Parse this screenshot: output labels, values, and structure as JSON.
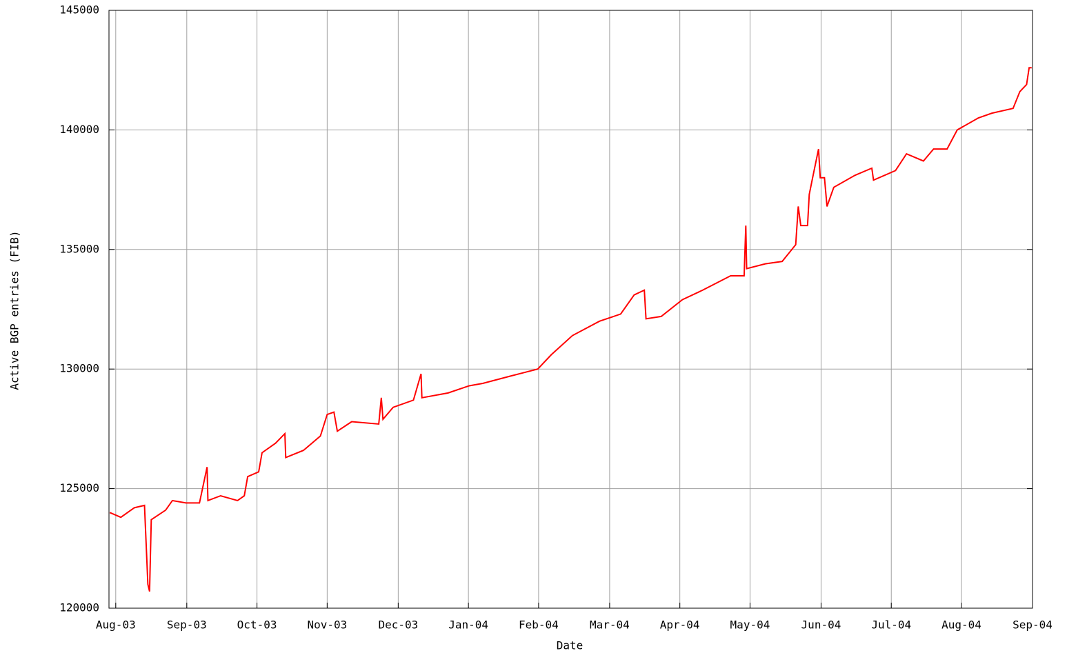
{
  "chart_data": {
    "type": "line",
    "x_label": "Date",
    "y_label": "Active BGP entries (FIB)",
    "x": [
      2003.576,
      2003.589,
      2003.605,
      2003.617,
      2003.621,
      2003.623,
      2003.625,
      2003.642,
      2003.65,
      2003.666,
      2003.682,
      2003.691,
      2003.692,
      2003.707,
      2003.727,
      2003.735,
      2003.739,
      2003.752,
      2003.756,
      2003.772,
      2003.783,
      2003.784,
      2003.805,
      2003.825,
      2003.833,
      2003.841,
      2003.845,
      2003.862,
      2003.894,
      2003.897,
      2003.899,
      2003.911,
      2003.935,
      2003.944,
      2003.945,
      2003.976,
      2004.001,
      2004.017,
      2004.049,
      2004.082,
      2004.098,
      2004.123,
      2004.155,
      2004.18,
      2004.196,
      2004.208,
      2004.21,
      2004.228,
      2004.253,
      2004.277,
      2004.31,
      2004.326,
      2004.328,
      2004.329,
      2004.351,
      2004.371,
      2004.387,
      2004.39,
      2004.393,
      2004.401,
      2004.403,
      2004.407,
      2004.414,
      2004.416,
      2004.421,
      2004.424,
      2004.432,
      2004.457,
      2004.477,
      2004.479,
      2004.505,
      2004.518,
      2004.538,
      2004.55,
      2004.566,
      2004.578,
      2004.603,
      2004.619,
      2004.644,
      2004.652,
      2004.66,
      2004.663,
      2004.666
    ],
    "series": [
      {
        "color": "#ff0000",
        "values": [
          124000,
          123800,
          124200,
          124300,
          121000,
          120700,
          123700,
          124100,
          124500,
          124400,
          124400,
          125900,
          124500,
          124700,
          124500,
          124700,
          125500,
          125700,
          126500,
          126900,
          127300,
          126300,
          126600,
          127200,
          128100,
          128200,
          127400,
          127800,
          127700,
          128800,
          127900,
          128400,
          128700,
          129800,
          128800,
          129000,
          129300,
          129400,
          129700,
          130000,
          130600,
          131400,
          132000,
          132300,
          133100,
          133300,
          132100,
          132200,
          132900,
          133300,
          133900,
          133900,
          136000,
          134200,
          134400,
          134500,
          135200,
          136800,
          136000,
          136000,
          137300,
          138000,
          139200,
          138000,
          138000,
          136800,
          137600,
          138100,
          138400,
          137900,
          138300,
          139000,
          138700,
          139200,
          139200,
          140000,
          140500,
          140700,
          140900,
          141600,
          141900,
          142600,
          142600
        ]
      }
    ],
    "xlim": [
      2003.575,
      2004.667
    ],
    "xticks": [
      {
        "value": 2003.583,
        "label": "Aug-03"
      },
      {
        "value": 2003.667,
        "label": "Sep-03"
      },
      {
        "value": 2003.75,
        "label": "Oct-03"
      },
      {
        "value": 2003.833,
        "label": "Nov-03"
      },
      {
        "value": 2003.917,
        "label": "Dec-03"
      },
      {
        "value": 2004,
        "label": "Jan-04"
      },
      {
        "value": 2004.083,
        "label": "Feb-04"
      },
      {
        "value": 2004.167,
        "label": "Mar-04"
      },
      {
        "value": 2004.25,
        "label": "Apr-04"
      },
      {
        "value": 2004.333,
        "label": "May-04"
      },
      {
        "value": 2004.417,
        "label": "Jun-04"
      },
      {
        "value": 2004.5,
        "label": "Jul-04"
      },
      {
        "value": 2004.583,
        "label": "Aug-04"
      },
      {
        "value": 2004.667,
        "label": "Sep-04"
      }
    ],
    "ylim": [
      120000,
      145000
    ],
    "yticks": [
      120000,
      125000,
      130000,
      135000,
      140000,
      145000
    ],
    "grid": true
  }
}
